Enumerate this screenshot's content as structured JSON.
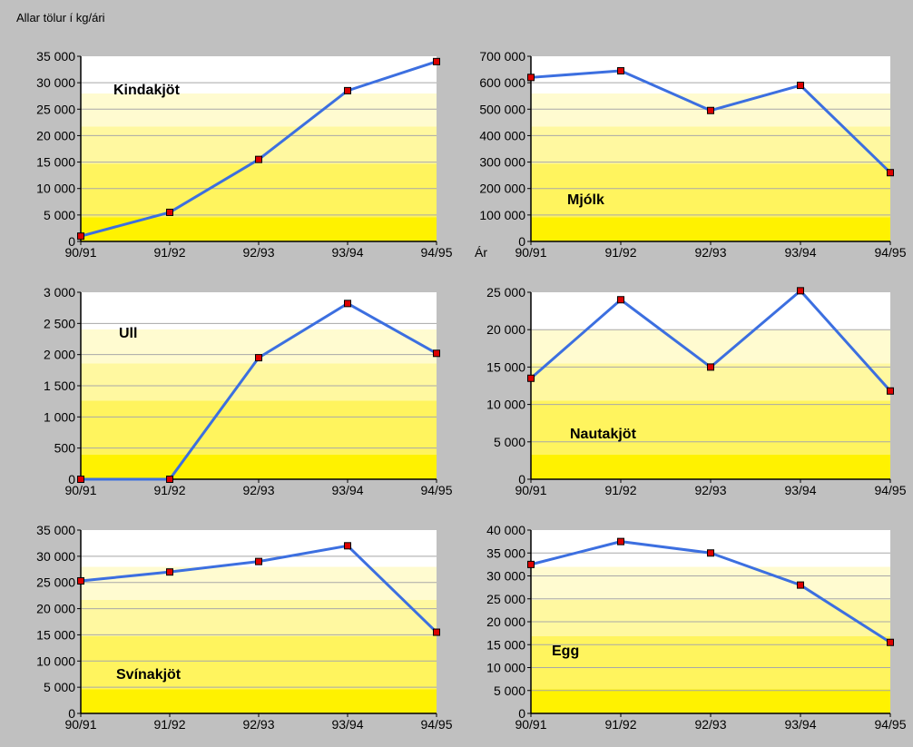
{
  "caption": "Allar tölur í kg/ári",
  "colors": {
    "background": "#c0c0c0",
    "line": "#3c6fe0",
    "marker": "#dd0000",
    "band_colors": [
      "#fff200",
      "#fff45e",
      "#fff8a0",
      "#fffbd0"
    ]
  },
  "chart_data": [
    {
      "type": "line",
      "title": "Kindakjöt",
      "categories": [
        "90/91",
        "91/92",
        "92/93",
        "93/94",
        "94/95"
      ],
      "values": [
        1000,
        5500,
        15500,
        28500,
        34000
      ],
      "ylim": [
        0,
        35000
      ],
      "yticks": [
        "0",
        "5 000",
        "10 000",
        "15 000",
        "20 000",
        "25 000",
        "30 000",
        "35 000"
      ],
      "grid": true
    },
    {
      "type": "line",
      "title": "Mjólk",
      "xlabel": "Ár",
      "categories": [
        "90/91",
        "91/92",
        "92/93",
        "93/94",
        "94/95"
      ],
      "values": [
        620000,
        645000,
        495000,
        590000,
        260000
      ],
      "ylim": [
        0,
        700000
      ],
      "yticks": [
        "0",
        "100 000",
        "200 000",
        "300 000",
        "400 000",
        "500 000",
        "600 000",
        "700 000"
      ],
      "grid": true
    },
    {
      "type": "line",
      "title": "Ull",
      "categories": [
        "90/91",
        "91/92",
        "92/93",
        "93/94",
        "94/95"
      ],
      "values": [
        0,
        0,
        1950,
        2820,
        2020
      ],
      "ylim": [
        0,
        3000
      ],
      "yticks": [
        "0",
        "500",
        "1 000",
        "1 500",
        "2 000",
        "2 500",
        "3 000"
      ],
      "grid": true
    },
    {
      "type": "line",
      "title": "Nautakjöt",
      "categories": [
        "90/91",
        "91/92",
        "92/93",
        "93/94",
        "94/95"
      ],
      "values": [
        13500,
        24000,
        15000,
        25200,
        11800
      ],
      "ylim": [
        0,
        25000
      ],
      "yticks": [
        "0",
        "5 000",
        "10 000",
        "15 000",
        "20 000",
        "25 000"
      ],
      "grid": true
    },
    {
      "type": "line",
      "title": "Svínakjöt",
      "categories": [
        "90/91",
        "91/92",
        "92/93",
        "93/94",
        "94/95"
      ],
      "values": [
        25300,
        27000,
        29000,
        32000,
        15500
      ],
      "ylim": [
        0,
        35000
      ],
      "yticks": [
        "0",
        "5 000",
        "10 000",
        "15 000",
        "20 000",
        "25 000",
        "30 000",
        "35 000"
      ],
      "grid": true
    },
    {
      "type": "line",
      "title": "Egg",
      "categories": [
        "90/91",
        "91/92",
        "92/93",
        "93/94",
        "94/95"
      ],
      "values": [
        32500,
        37500,
        35000,
        28000,
        15500
      ],
      "ylim": [
        0,
        40000
      ],
      "yticks": [
        "0",
        "5 000",
        "10 000",
        "15 000",
        "20 000",
        "25 000",
        "30 000",
        "35 000",
        "40 000"
      ],
      "grid": true
    }
  ]
}
